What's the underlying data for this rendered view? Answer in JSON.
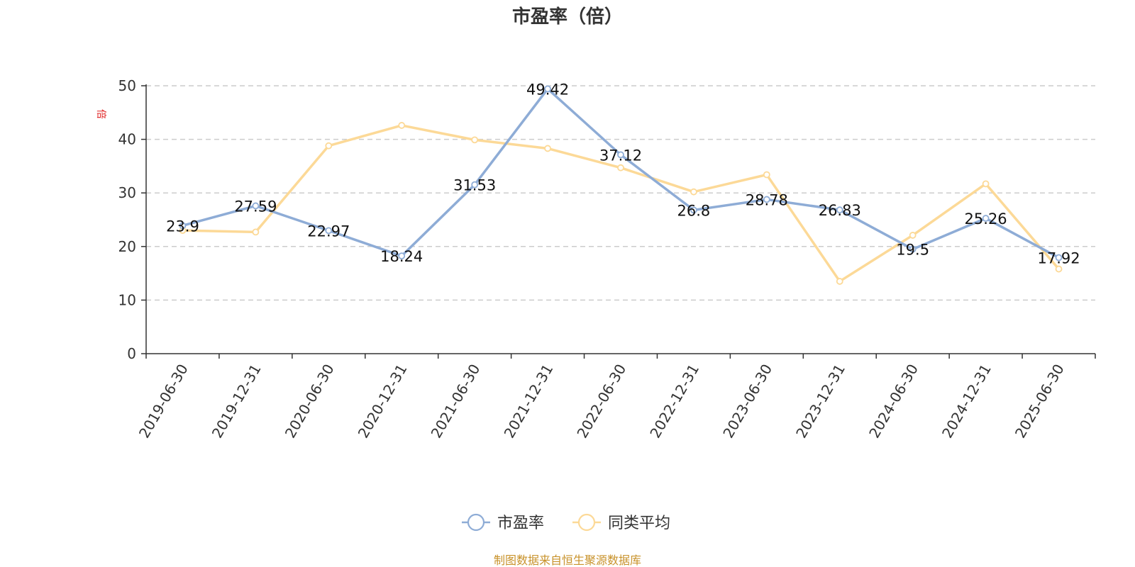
{
  "chart_data": {
    "type": "line",
    "title": "市盈率（倍）",
    "ylabel": "倍",
    "ylim": [
      0,
      50
    ],
    "yticks": [
      0,
      10,
      20,
      30,
      40,
      50
    ],
    "grid": true,
    "legend_position": "bottom",
    "categories": [
      "2019-06-30",
      "2019-12-31",
      "2020-06-30",
      "2020-12-31",
      "2021-06-30",
      "2021-12-31",
      "2022-06-30",
      "2022-12-31",
      "2023-06-30",
      "2023-12-31",
      "2024-06-30",
      "2024-12-31",
      "2025-06-30"
    ],
    "series": [
      {
        "name": "市盈率",
        "color": "#8EACD6",
        "values": [
          23.9,
          27.59,
          22.97,
          18.24,
          31.53,
          49.42,
          37.12,
          26.8,
          28.78,
          26.83,
          19.5,
          25.26,
          17.92
        ],
        "labels": [
          "23.9",
          "27.59",
          "22.97",
          "18.24",
          "31.53",
          "49.42",
          "37.12",
          "26.8",
          "28.78",
          "26.83",
          "19.5",
          "25.26",
          "17.92"
        ]
      },
      {
        "name": "同类平均",
        "color": "#FCD997",
        "values": [
          23.0,
          22.7,
          38.8,
          42.6,
          39.9,
          38.3,
          34.7,
          30.2,
          33.4,
          13.5,
          22.1,
          31.7,
          15.8
        ]
      }
    ]
  },
  "footer": {
    "source": "制图数据来自恒生聚源数据库",
    "source_color": "#C8922A"
  },
  "colors": {
    "axis": "#333333",
    "grid": "#CCCCCC",
    "unit": "#E02020"
  }
}
